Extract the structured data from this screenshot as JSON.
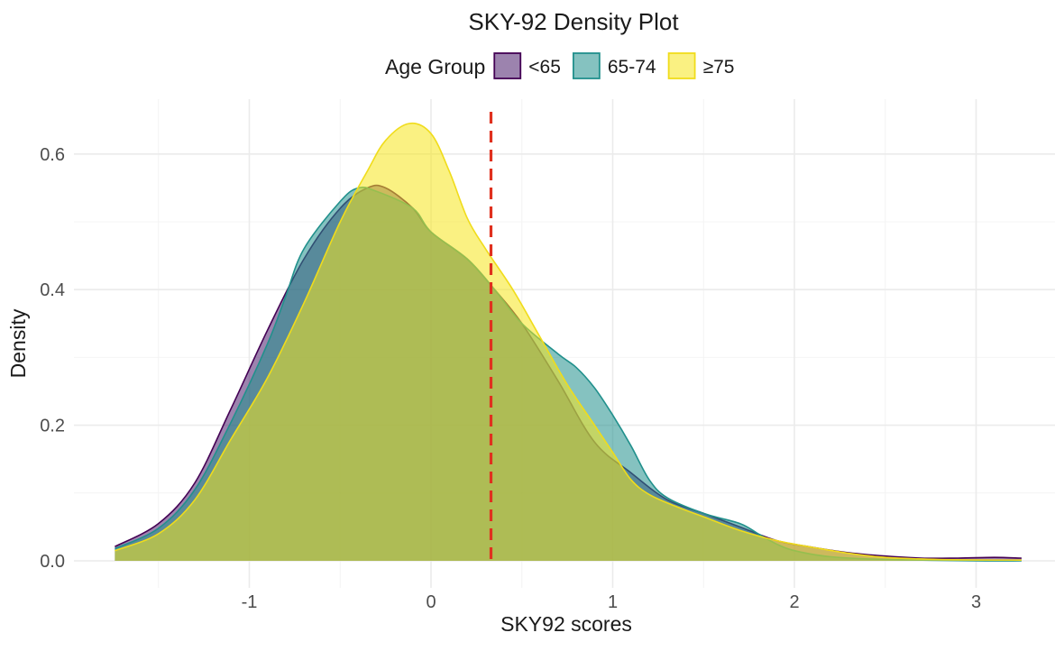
{
  "chart_data": {
    "type": "area",
    "subtype": "density",
    "title": "SKY-92 Density Plot",
    "xlabel": "SKY92 scores",
    "ylabel": "Density",
    "xlim": [
      -1.75,
      3.25
    ],
    "ylim": [
      -0.02,
      0.68
    ],
    "x_ticks": [
      -1,
      0,
      1,
      2,
      3
    ],
    "y_ticks": [
      0.0,
      0.2,
      0.4,
      0.6
    ],
    "x_tick_labels": [
      "-1",
      "0",
      "1",
      "2",
      "3"
    ],
    "y_tick_labels": [
      "0.0",
      "0.2",
      "0.4",
      "0.6"
    ],
    "grid": true,
    "legend": {
      "title": "Age Group",
      "placement": "top"
    },
    "reference_line": {
      "x": 0.33,
      "color": "#e0301e",
      "style": "dashed"
    },
    "fill_opacity": 0.55,
    "series": [
      {
        "name": "<65",
        "fill": "#4b1d6b",
        "stroke": "#440154",
        "points": [
          [
            -1.74,
            0.021
          ],
          [
            -1.5,
            0.055
          ],
          [
            -1.3,
            0.115
          ],
          [
            -1.1,
            0.225
          ],
          [
            -0.9,
            0.34
          ],
          [
            -0.7,
            0.445
          ],
          [
            -0.5,
            0.52
          ],
          [
            -0.35,
            0.55
          ],
          [
            -0.25,
            0.55
          ],
          [
            -0.1,
            0.52
          ],
          [
            0.0,
            0.485
          ],
          [
            0.2,
            0.445
          ],
          [
            0.35,
            0.4
          ],
          [
            0.5,
            0.35
          ],
          [
            0.7,
            0.265
          ],
          [
            0.9,
            0.175
          ],
          [
            1.1,
            0.13
          ],
          [
            1.3,
            0.09
          ],
          [
            1.5,
            0.07
          ],
          [
            1.7,
            0.05
          ],
          [
            1.9,
            0.03
          ],
          [
            2.1,
            0.02
          ],
          [
            2.3,
            0.012
          ],
          [
            2.5,
            0.007
          ],
          [
            2.7,
            0.004
          ],
          [
            2.9,
            0.004
          ],
          [
            3.1,
            0.005
          ],
          [
            3.25,
            0.004
          ]
        ]
      },
      {
        "name": "65-74",
        "fill": "#21908c",
        "stroke": "#21908c",
        "points": [
          [
            -1.74,
            0.018
          ],
          [
            -1.5,
            0.048
          ],
          [
            -1.3,
            0.105
          ],
          [
            -1.1,
            0.205
          ],
          [
            -0.9,
            0.32
          ],
          [
            -0.8,
            0.39
          ],
          [
            -0.7,
            0.46
          ],
          [
            -0.5,
            0.53
          ],
          [
            -0.4,
            0.55
          ],
          [
            -0.3,
            0.545
          ],
          [
            -0.1,
            0.52
          ],
          [
            0.0,
            0.485
          ],
          [
            0.2,
            0.445
          ],
          [
            0.35,
            0.4
          ],
          [
            0.5,
            0.35
          ],
          [
            0.7,
            0.305
          ],
          [
            0.8,
            0.285
          ],
          [
            0.9,
            0.255
          ],
          [
            1.0,
            0.215
          ],
          [
            1.1,
            0.17
          ],
          [
            1.2,
            0.12
          ],
          [
            1.3,
            0.093
          ],
          [
            1.5,
            0.07
          ],
          [
            1.7,
            0.055
          ],
          [
            1.8,
            0.04
          ],
          [
            1.9,
            0.025
          ],
          [
            2.0,
            0.015
          ],
          [
            2.2,
            0.006
          ],
          [
            2.5,
            0.002
          ],
          [
            3.0,
            0.0
          ],
          [
            3.25,
            0.0
          ]
        ]
      },
      {
        "name": "≥75",
        "fill": "#f5e51b",
        "stroke": "#f0dc1b",
        "points": [
          [
            -1.74,
            0.015
          ],
          [
            -1.5,
            0.04
          ],
          [
            -1.3,
            0.09
          ],
          [
            -1.1,
            0.18
          ],
          [
            -0.9,
            0.27
          ],
          [
            -0.7,
            0.38
          ],
          [
            -0.5,
            0.5
          ],
          [
            -0.35,
            0.575
          ],
          [
            -0.25,
            0.62
          ],
          [
            -0.12,
            0.645
          ],
          [
            0.0,
            0.63
          ],
          [
            0.1,
            0.575
          ],
          [
            0.2,
            0.505
          ],
          [
            0.3,
            0.46
          ],
          [
            0.45,
            0.4
          ],
          [
            0.6,
            0.33
          ],
          [
            0.75,
            0.26
          ],
          [
            0.9,
            0.2
          ],
          [
            1.0,
            0.16
          ],
          [
            1.1,
            0.12
          ],
          [
            1.2,
            0.098
          ],
          [
            1.35,
            0.08
          ],
          [
            1.5,
            0.065
          ],
          [
            1.7,
            0.045
          ],
          [
            1.9,
            0.03
          ],
          [
            2.1,
            0.02
          ],
          [
            2.3,
            0.011
          ],
          [
            2.5,
            0.005
          ],
          [
            2.8,
            0.002
          ],
          [
            3.25,
            0.001
          ]
        ]
      }
    ]
  }
}
